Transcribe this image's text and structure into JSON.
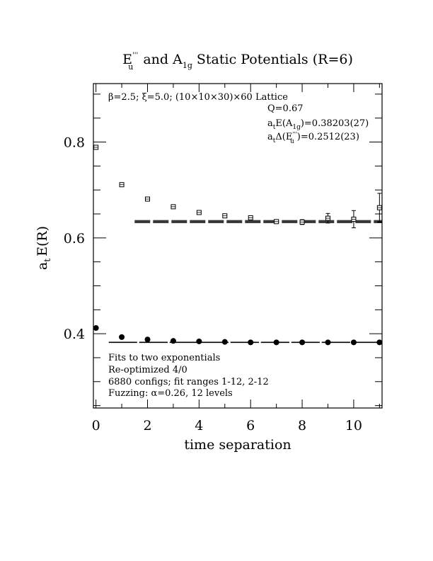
{
  "chart_data": {
    "type": "scatter",
    "title": {
      "rep1": "E",
      "rep1_sub": "u",
      "rep1_sup": "'''",
      "mid": "and A",
      "rep2_sub": "1g",
      "rest": "Static Potentials (R=6)"
    },
    "xlabel": "time separation",
    "ylabel": "a",
    "ylabel_sub": "t",
    "ylabel_rest": "E(R)",
    "xlim": [
      -0.1,
      11.1
    ],
    "ylim": [
      0.245,
      0.922
    ],
    "x_ticks": [
      "0",
      "2",
      "4",
      "6",
      "8",
      "10"
    ],
    "y_ticks": [
      "0.4",
      "0.6",
      "0.8"
    ],
    "annotations": {
      "lattice": "β=2.5; ξ=5.0; (10×10×30)×60 Lattice",
      "q": "Q=0.67",
      "e_a1g_pre": "a",
      "e_a1g_sub": "t",
      "e_a1g_mid": "E(A",
      "e_a1g_sub2": "1g",
      "e_a1g_val": ")=0.38203(27)",
      "de_pre": "a",
      "de_sub": "t",
      "de_mid": "Δ(E",
      "de_sup": "'''",
      "de_sub2": "u",
      "de_val": ")=0.2512(23)",
      "fit_line1": "Fits to two exponentials",
      "fit_line2": "Re-optimized 4/0",
      "fit_line3": "6880 configs; fit ranges 1-12, 2-12",
      "fit_line4": "Fuzzing: α=0.26, 12 levels"
    },
    "series": [
      {
        "marker": "square-open",
        "x": [
          0,
          1,
          2,
          3,
          4,
          5,
          6,
          7,
          8,
          9,
          10,
          11
        ],
        "y": [
          0.789,
          0.711,
          0.681,
          0.665,
          0.653,
          0.646,
          0.642,
          0.634,
          0.633,
          0.641,
          0.639,
          0.663
        ],
        "err": [
          0.002,
          0.002,
          0.002,
          0.002,
          0.002,
          0.003,
          0.004,
          0.003,
          0.005,
          0.01,
          0.018,
          0.03
        ]
      },
      {
        "marker": "circle-filled",
        "x": [
          0,
          1,
          2,
          3,
          4,
          5,
          6,
          7,
          8,
          9,
          10,
          11
        ],
        "y": [
          0.412,
          0.393,
          0.388,
          0.385,
          0.384,
          0.383,
          0.382,
          0.382,
          0.382,
          0.382,
          0.382,
          0.382
        ],
        "err": [
          0,
          0,
          0,
          0,
          0,
          0,
          0,
          0,
          0,
          0,
          0,
          0
        ]
      }
    ],
    "fits": [
      {
        "y": 0.634,
        "band": 0.0023,
        "x_range": [
          1.5,
          11.1
        ]
      },
      {
        "y": 0.382,
        "band": 0.0004,
        "x_range": [
          0.5,
          11.1
        ]
      }
    ]
  }
}
